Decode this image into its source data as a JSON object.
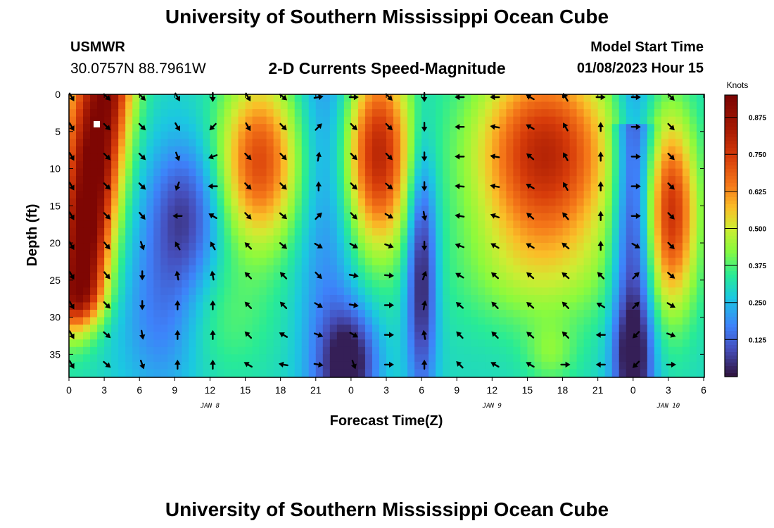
{
  "header": {
    "title": "University of Southern Mississippi Ocean Cube",
    "station": "USMWR",
    "coords": "30.0757N  88.7961W",
    "subtitle": "2-D Currents Speed-Magnitude",
    "model_start_label": "Model Start Time",
    "model_start_value": "01/08/2023 Hour 15"
  },
  "footer": {
    "title": "University of Southern Mississippi Ocean Cube"
  },
  "chart_data": {
    "type": "heatmap",
    "title": "2-D Currents Speed-Magnitude",
    "xlabel": "Forecast Time(Z)",
    "ylabel": "Depth (ft)",
    "xlim": [
      0,
      54
    ],
    "ylim": [
      38,
      0
    ],
    "x_ticks": [
      0,
      3,
      6,
      9,
      12,
      15,
      18,
      21,
      24,
      27,
      30,
      33,
      36,
      39,
      42,
      45,
      48,
      51,
      54
    ],
    "x_tick_labels": [
      "0",
      "3",
      "6",
      "9",
      "12",
      "15",
      "18",
      "21",
      "0",
      "3",
      "6",
      "9",
      "12",
      "15",
      "18",
      "21",
      "0",
      "3",
      "6"
    ],
    "day_labels": [
      {
        "x": 12,
        "text": "JAN 8"
      },
      {
        "x": 36,
        "text": "JAN 9"
      },
      {
        "x": 51,
        "text": "JAN 10"
      }
    ],
    "y_ticks": [
      0,
      5,
      10,
      15,
      20,
      25,
      30,
      35
    ],
    "colorbar": {
      "title": "Knots",
      "min": 0.0,
      "max": 0.95,
      "ticks": [
        0.125,
        0.25,
        0.375,
        0.5,
        0.625,
        0.75,
        0.875
      ],
      "tick_labels": [
        "0.125",
        "0.250",
        "0.375",
        "0.500",
        "0.625",
        "0.750",
        "0.875"
      ]
    },
    "vector_times": [
      0,
      3,
      6,
      9,
      12,
      15,
      18,
      21,
      24,
      27,
      30,
      33,
      36,
      39,
      42,
      45,
      48,
      51
    ],
    "vector_depths": [
      0,
      4,
      8,
      12,
      16,
      20,
      24,
      28,
      32,
      36
    ],
    "vector_directions_deg": [
      [
        150,
        150,
        150,
        150,
        150,
        150,
        150,
        150,
        150,
        150
      ],
      [
        135,
        135,
        135,
        135,
        135,
        140,
        140,
        135,
        130,
        130
      ],
      [
        135,
        135,
        135,
        135,
        140,
        160,
        180,
        180,
        170,
        160
      ],
      [
        150,
        150,
        160,
        200,
        270,
        330,
        350,
        0,
        0,
        0
      ],
      [
        180,
        225,
        250,
        270,
        300,
        330,
        350,
        0,
        0,
        0
      ],
      [
        150,
        150,
        135,
        135,
        135,
        315,
        315,
        315,
        315,
        300
      ],
      [
        130,
        135,
        135,
        135,
        130,
        130,
        315,
        315,
        300,
        280
      ],
      [
        80,
        45,
        10,
        0,
        45,
        120,
        135,
        120,
        110,
        100
      ],
      [
        90,
        135,
        135,
        135,
        135,
        120,
        100,
        100,
        120,
        160
      ],
      [
        135,
        135,
        135,
        130,
        120,
        110,
        95,
        90,
        90,
        90
      ],
      [
        180,
        180,
        180,
        180,
        170,
        180,
        20,
        10,
        350,
        0
      ],
      [
        270,
        270,
        270,
        275,
        280,
        290,
        300,
        310,
        315,
        315
      ],
      [
        270,
        280,
        280,
        280,
        290,
        300,
        310,
        315,
        315,
        300
      ],
      [
        300,
        300,
        310,
        300,
        310,
        300,
        310,
        310,
        310,
        300
      ],
      [
        330,
        330,
        330,
        330,
        320,
        310,
        310,
        315,
        315,
        90
      ],
      [
        90,
        0,
        0,
        0,
        0,
        0,
        315,
        300,
        270,
        270
      ],
      [
        90,
        90,
        90,
        90,
        90,
        120,
        45,
        45,
        225,
        225
      ],
      [
        135,
        135,
        135,
        135,
        135,
        135,
        130,
        120,
        110,
        90
      ]
    ]
  }
}
